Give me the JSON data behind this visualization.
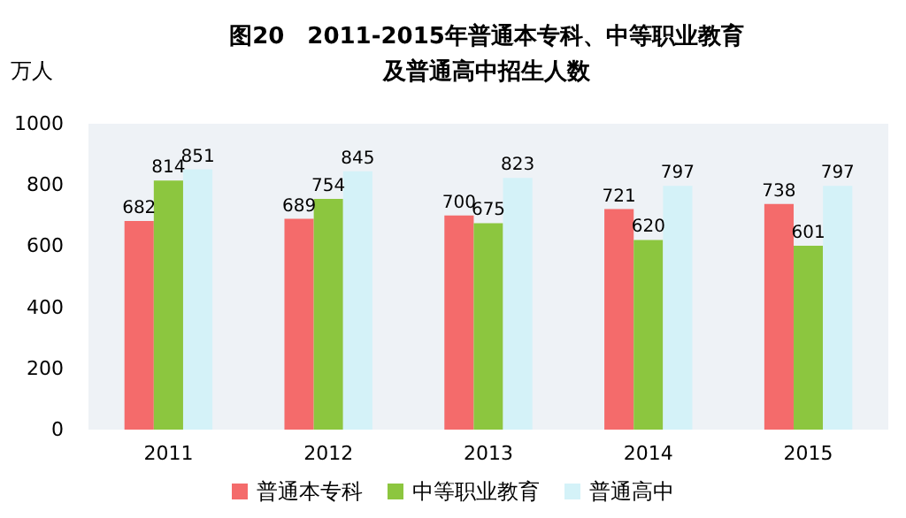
{
  "chart_data": {
    "type": "bar",
    "title": "图20　2011-2015年普通本专科、中等职业教育及普通高中招生人数",
    "ylabel": "万人",
    "categories": [
      "2011",
      "2012",
      "2013",
      "2014",
      "2015"
    ],
    "series": [
      {
        "name": "普通本专科",
        "color": "#f46b6b",
        "values": [
          682,
          689,
          700,
          721,
          738
        ]
      },
      {
        "name": "中等职业教育",
        "color": "#8cc63f",
        "values": [
          814,
          754,
          675,
          620,
          601
        ]
      },
      {
        "name": "普通高中",
        "color": "#d4f2f8",
        "values": [
          851,
          845,
          823,
          797,
          797
        ]
      }
    ],
    "ylim": [
      0,
      1000
    ],
    "yticks": [
      0,
      200,
      400,
      600,
      800,
      1000
    ],
    "data_labels": true,
    "legend": "bottom",
    "grid": false
  }
}
